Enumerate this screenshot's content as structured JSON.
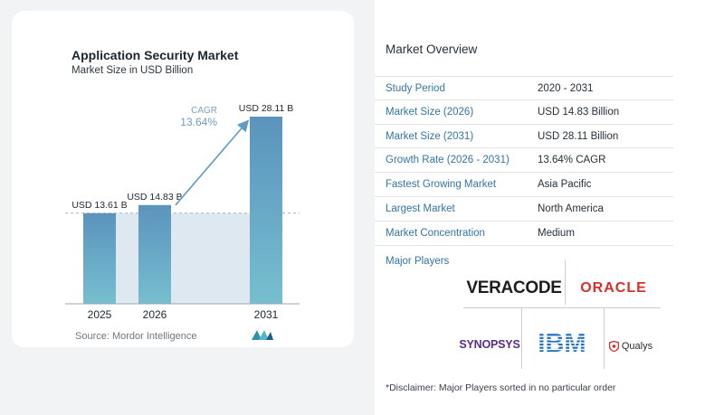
{
  "chart_data": {
    "type": "bar",
    "title": "Application Security Market",
    "subtitle": "Market Size in USD Billion",
    "categories": [
      "2025",
      "2026",
      "2031"
    ],
    "values": [
      13.61,
      14.83,
      28.11
    ],
    "value_labels": [
      "USD 13.61 B",
      "USD 14.83 B",
      "USD 28.11 B"
    ],
    "ylim": [
      0,
      28.11
    ],
    "cagr_label": "CAGR",
    "cagr_value": "13.64%",
    "bar_color_top": "#5b93bd",
    "bar_color_bottom": "#76bfcf",
    "shade_color": "#dde8f0",
    "arrow_color": "#5f9bc6"
  },
  "source": "Source:  Mordor Intelligence",
  "overview": {
    "title": "Market Overview",
    "rows": [
      {
        "key": "Study Period",
        "value": "2020 - 2031"
      },
      {
        "key": "Market Size (2026)",
        "value": "USD 14.83 Billion"
      },
      {
        "key": "Market Size (2031)",
        "value": "USD 28.11 Billion"
      },
      {
        "key": "Growth Rate (2026 - 2031)",
        "value": "13.64% CAGR"
      },
      {
        "key": "Fastest Growing Market",
        "value": "Asia Pacific"
      },
      {
        "key": "Largest Market",
        "value": "North America"
      },
      {
        "key": "Market Concentration",
        "value": "Medium"
      }
    ],
    "major_players_label": "Major Players",
    "players": [
      "VERACODE",
      "ORACLE",
      "SYNOPSYS",
      "IBM",
      "Qualys"
    ],
    "key_color": "#3474a6"
  },
  "disclaimer": "*Disclaimer: Major Players sorted in no particular order"
}
